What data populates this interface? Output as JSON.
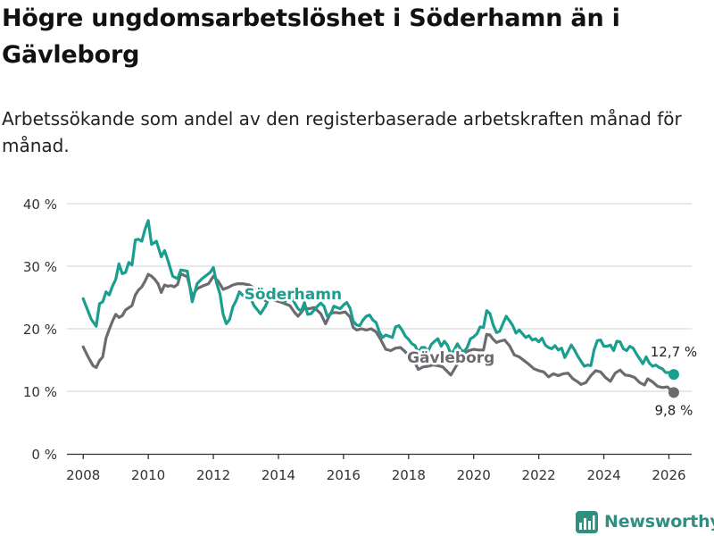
{
  "title": "Högre ungdomsarbetslöshet i Söderhamn än i Gävleborg",
  "subtitle": "Arbetssökande som andel av den registerbaserade arbetskraften månad för månad.",
  "brand": {
    "name": "Newsworthy"
  },
  "colors": {
    "soderhamn": "#1a9e8f",
    "gavleborg": "#6d6b70",
    "grid": "#d9d9d9",
    "axis": "#333333"
  },
  "chart_data": {
    "type": "line",
    "title": "Högre ungdomsarbetslöshet i Söderhamn än i Gävleborg",
    "xlabel": "",
    "ylabel": "",
    "xlim": [
      2007.5,
      2026.7
    ],
    "ylim": [
      0,
      40
    ],
    "xticks": [
      2008,
      2010,
      2012,
      2014,
      2016,
      2018,
      2020,
      2022,
      2024,
      2026
    ],
    "yticks": [
      0,
      10,
      20,
      30,
      40
    ],
    "ytick_labels": [
      "0 %",
      "10 %",
      "20 %",
      "30 %",
      "40 %"
    ],
    "grid": true,
    "series": [
      {
        "name": "Söderhamn",
        "label": "Söderhamn",
        "end_label": "12,7 %",
        "points": [
          [
            2008.0,
            24.8
          ],
          [
            2008.25,
            21.5
          ],
          [
            2008.4,
            20.4
          ],
          [
            2008.5,
            24.0
          ],
          [
            2008.6,
            24.3
          ],
          [
            2008.7,
            25.9
          ],
          [
            2008.8,
            25.4
          ],
          [
            2008.9,
            26.8
          ],
          [
            2009.0,
            27.9
          ],
          [
            2009.1,
            30.4
          ],
          [
            2009.2,
            28.8
          ],
          [
            2009.3,
            29.0
          ],
          [
            2009.4,
            30.6
          ],
          [
            2009.5,
            30.2
          ],
          [
            2009.6,
            34.2
          ],
          [
            2009.7,
            34.3
          ],
          [
            2009.8,
            34.0
          ],
          [
            2009.9,
            35.9
          ],
          [
            2010.0,
            37.3
          ],
          [
            2010.1,
            33.5
          ],
          [
            2010.25,
            34.0
          ],
          [
            2010.4,
            31.5
          ],
          [
            2010.5,
            32.5
          ],
          [
            2010.6,
            31.0
          ],
          [
            2010.75,
            28.4
          ],
          [
            2010.9,
            28.0
          ],
          [
            2011.0,
            29.4
          ],
          [
            2011.2,
            29.2
          ],
          [
            2011.35,
            24.3
          ],
          [
            2011.5,
            27.2
          ],
          [
            2011.65,
            28.0
          ],
          [
            2011.8,
            28.6
          ],
          [
            2011.9,
            29.0
          ],
          [
            2012.0,
            29.8
          ],
          [
            2012.1,
            27.3
          ],
          [
            2012.2,
            25.6
          ],
          [
            2012.3,
            22.3
          ],
          [
            2012.4,
            20.8
          ],
          [
            2012.5,
            21.5
          ],
          [
            2012.6,
            23.5
          ],
          [
            2012.7,
            24.5
          ],
          [
            2012.8,
            25.9
          ],
          [
            2012.95,
            25.1
          ],
          [
            2013.1,
            25.3
          ],
          [
            2013.25,
            23.7
          ],
          [
            2013.45,
            22.4
          ],
          [
            2013.6,
            23.6
          ],
          [
            2013.75,
            25.4
          ],
          [
            2013.9,
            25.0
          ],
          [
            2014.0,
            24.7
          ],
          [
            2014.2,
            24.3
          ],
          [
            2014.35,
            25.6
          ],
          [
            2014.5,
            24.1
          ],
          [
            2014.6,
            23.2
          ],
          [
            2014.7,
            22.8
          ],
          [
            2014.8,
            24.2
          ],
          [
            2014.9,
            22.3
          ],
          [
            2015.0,
            22.4
          ],
          [
            2015.2,
            23.6
          ],
          [
            2015.3,
            24.1
          ],
          [
            2015.4,
            23.6
          ],
          [
            2015.5,
            22.0
          ],
          [
            2015.6,
            22.3
          ],
          [
            2015.7,
            23.6
          ],
          [
            2015.8,
            23.4
          ],
          [
            2015.9,
            23.2
          ],
          [
            2016.0,
            23.8
          ],
          [
            2016.1,
            24.2
          ],
          [
            2016.2,
            23.3
          ],
          [
            2016.3,
            21.2
          ],
          [
            2016.4,
            20.6
          ],
          [
            2016.5,
            20.5
          ],
          [
            2016.6,
            21.4
          ],
          [
            2016.7,
            22.0
          ],
          [
            2016.8,
            22.2
          ],
          [
            2016.9,
            21.4
          ],
          [
            2017.0,
            21.0
          ],
          [
            2017.1,
            19.5
          ],
          [
            2017.2,
            18.6
          ],
          [
            2017.3,
            19.0
          ],
          [
            2017.4,
            18.8
          ],
          [
            2017.5,
            18.6
          ],
          [
            2017.6,
            20.3
          ],
          [
            2017.7,
            20.5
          ],
          [
            2017.8,
            19.8
          ],
          [
            2017.9,
            18.8
          ],
          [
            2018.0,
            18.3
          ],
          [
            2018.1,
            17.6
          ],
          [
            2018.2,
            17.3
          ],
          [
            2018.3,
            16.2
          ],
          [
            2018.4,
            17.0
          ],
          [
            2018.5,
            17.0
          ],
          [
            2018.6,
            16.4
          ],
          [
            2018.7,
            17.5
          ],
          [
            2018.8,
            18.0
          ],
          [
            2018.9,
            18.4
          ],
          [
            2019.0,
            17.2
          ],
          [
            2019.1,
            18.0
          ],
          [
            2019.2,
            17.3
          ],
          [
            2019.3,
            15.9
          ],
          [
            2019.4,
            16.6
          ],
          [
            2019.5,
            17.6
          ],
          [
            2019.6,
            16.7
          ],
          [
            2019.7,
            16.3
          ],
          [
            2019.8,
            17.0
          ],
          [
            2019.9,
            18.4
          ],
          [
            2020.0,
            18.7
          ],
          [
            2020.1,
            19.2
          ],
          [
            2020.2,
            20.3
          ],
          [
            2020.3,
            20.2
          ],
          [
            2020.4,
            22.9
          ],
          [
            2020.5,
            22.4
          ],
          [
            2020.6,
            20.6
          ],
          [
            2020.7,
            19.4
          ],
          [
            2020.8,
            19.6
          ],
          [
            2020.9,
            20.8
          ],
          [
            2021.0,
            22.0
          ],
          [
            2021.1,
            21.3
          ],
          [
            2021.2,
            20.5
          ],
          [
            2021.3,
            19.3
          ],
          [
            2021.4,
            19.8
          ],
          [
            2021.5,
            19.2
          ],
          [
            2021.6,
            18.6
          ],
          [
            2021.7,
            18.9
          ],
          [
            2021.8,
            18.2
          ],
          [
            2021.9,
            18.4
          ],
          [
            2022.0,
            17.9
          ],
          [
            2022.1,
            18.5
          ],
          [
            2022.2,
            17.4
          ],
          [
            2022.3,
            17.0
          ],
          [
            2022.4,
            16.8
          ],
          [
            2022.5,
            17.3
          ],
          [
            2022.6,
            16.6
          ],
          [
            2022.7,
            16.9
          ],
          [
            2022.8,
            15.4
          ],
          [
            2022.9,
            16.4
          ],
          [
            2023.0,
            17.4
          ],
          [
            2023.1,
            16.6
          ],
          [
            2023.2,
            15.6
          ],
          [
            2023.3,
            14.8
          ],
          [
            2023.4,
            14.0
          ],
          [
            2023.5,
            14.2
          ],
          [
            2023.6,
            14.1
          ],
          [
            2023.7,
            16.6
          ],
          [
            2023.8,
            18.1
          ],
          [
            2023.9,
            18.2
          ],
          [
            2024.0,
            17.2
          ],
          [
            2024.1,
            17.2
          ],
          [
            2024.2,
            17.4
          ],
          [
            2024.3,
            16.5
          ],
          [
            2024.4,
            18.0
          ],
          [
            2024.5,
            17.9
          ],
          [
            2024.6,
            16.8
          ],
          [
            2024.7,
            16.5
          ],
          [
            2024.8,
            17.2
          ],
          [
            2024.9,
            16.9
          ],
          [
            2025.0,
            16.0
          ],
          [
            2025.1,
            15.2
          ],
          [
            2025.2,
            14.4
          ],
          [
            2025.3,
            15.5
          ],
          [
            2025.4,
            14.5
          ],
          [
            2025.5,
            14.0
          ],
          [
            2025.6,
            14.2
          ],
          [
            2025.7,
            13.8
          ],
          [
            2025.8,
            13.6
          ],
          [
            2025.9,
            13.0
          ],
          [
            2026.0,
            13.0
          ],
          [
            2026.15,
            12.7
          ]
        ]
      },
      {
        "name": "Gävleborg",
        "label": "Gävleborg",
        "end_label": "9,8 %",
        "points": [
          [
            2008.0,
            17.1
          ],
          [
            2008.15,
            15.5
          ],
          [
            2008.3,
            14.1
          ],
          [
            2008.4,
            13.8
          ],
          [
            2008.5,
            14.9
          ],
          [
            2008.6,
            15.5
          ],
          [
            2008.7,
            18.5
          ],
          [
            2008.8,
            19.9
          ],
          [
            2008.9,
            21.2
          ],
          [
            2009.0,
            22.3
          ],
          [
            2009.1,
            21.8
          ],
          [
            2009.2,
            22.1
          ],
          [
            2009.3,
            23.0
          ],
          [
            2009.5,
            23.7
          ],
          [
            2009.6,
            25.4
          ],
          [
            2009.7,
            26.2
          ],
          [
            2009.8,
            26.7
          ],
          [
            2009.9,
            27.6
          ],
          [
            2010.0,
            28.7
          ],
          [
            2010.1,
            28.4
          ],
          [
            2010.2,
            27.9
          ],
          [
            2010.3,
            27.2
          ],
          [
            2010.4,
            25.8
          ],
          [
            2010.5,
            27.0
          ],
          [
            2010.6,
            26.8
          ],
          [
            2010.7,
            26.9
          ],
          [
            2010.8,
            26.7
          ],
          [
            2010.9,
            27.1
          ],
          [
            2011.0,
            28.8
          ],
          [
            2011.2,
            28.3
          ],
          [
            2011.35,
            25.2
          ],
          [
            2011.5,
            26.4
          ],
          [
            2011.7,
            26.9
          ],
          [
            2011.85,
            27.2
          ],
          [
            2012.0,
            28.4
          ],
          [
            2012.15,
            27.6
          ],
          [
            2012.3,
            26.3
          ],
          [
            2012.45,
            26.6
          ],
          [
            2012.6,
            27.0
          ],
          [
            2012.75,
            27.2
          ],
          [
            2012.9,
            27.2
          ],
          [
            2013.1,
            27.0
          ],
          [
            2013.25,
            26.5
          ],
          [
            2013.45,
            25.0
          ],
          [
            2013.6,
            24.5
          ],
          [
            2013.75,
            24.8
          ],
          [
            2013.9,
            24.5
          ],
          [
            2014.05,
            24.3
          ],
          [
            2014.2,
            24.0
          ],
          [
            2014.35,
            23.7
          ],
          [
            2014.5,
            22.6
          ],
          [
            2014.6,
            22.0
          ],
          [
            2014.7,
            22.6
          ],
          [
            2014.8,
            23.3
          ],
          [
            2014.95,
            23.2
          ],
          [
            2015.1,
            23.4
          ],
          [
            2015.3,
            22.4
          ],
          [
            2015.45,
            20.8
          ],
          [
            2015.6,
            22.5
          ],
          [
            2015.75,
            22.6
          ],
          [
            2015.9,
            22.5
          ],
          [
            2016.05,
            22.7
          ],
          [
            2016.2,
            21.9
          ],
          [
            2016.3,
            20.2
          ],
          [
            2016.4,
            19.8
          ],
          [
            2016.55,
            20.0
          ],
          [
            2016.7,
            19.8
          ],
          [
            2016.85,
            20.0
          ],
          [
            2017.0,
            19.5
          ],
          [
            2017.15,
            18.2
          ],
          [
            2017.3,
            16.7
          ],
          [
            2017.45,
            16.5
          ],
          [
            2017.6,
            16.9
          ],
          [
            2017.75,
            17.0
          ],
          [
            2017.9,
            16.3
          ],
          [
            2018.05,
            15.5
          ],
          [
            2018.2,
            14.5
          ],
          [
            2018.3,
            13.5
          ],
          [
            2018.45,
            13.9
          ],
          [
            2018.6,
            14.0
          ],
          [
            2018.75,
            14.2
          ],
          [
            2018.9,
            14.1
          ],
          [
            2019.05,
            13.9
          ],
          [
            2019.2,
            13.1
          ],
          [
            2019.3,
            12.6
          ],
          [
            2019.4,
            13.5
          ],
          [
            2019.55,
            14.8
          ],
          [
            2019.7,
            15.8
          ],
          [
            2019.85,
            16.5
          ],
          [
            2020.0,
            16.7
          ],
          [
            2020.15,
            16.6
          ],
          [
            2020.3,
            16.6
          ],
          [
            2020.4,
            19.1
          ],
          [
            2020.5,
            19.0
          ],
          [
            2020.6,
            18.3
          ],
          [
            2020.7,
            17.8
          ],
          [
            2020.8,
            18.0
          ],
          [
            2020.95,
            18.2
          ],
          [
            2021.1,
            17.3
          ],
          [
            2021.25,
            15.8
          ],
          [
            2021.4,
            15.5
          ],
          [
            2021.55,
            14.9
          ],
          [
            2021.7,
            14.3
          ],
          [
            2021.85,
            13.6
          ],
          [
            2022.0,
            13.3
          ],
          [
            2022.15,
            13.1
          ],
          [
            2022.3,
            12.3
          ],
          [
            2022.45,
            12.8
          ],
          [
            2022.6,
            12.5
          ],
          [
            2022.75,
            12.8
          ],
          [
            2022.9,
            12.9
          ],
          [
            2023.05,
            12.0
          ],
          [
            2023.2,
            11.5
          ],
          [
            2023.3,
            11.1
          ],
          [
            2023.45,
            11.4
          ],
          [
            2023.6,
            12.5
          ],
          [
            2023.75,
            13.3
          ],
          [
            2023.9,
            13.1
          ],
          [
            2024.05,
            12.2
          ],
          [
            2024.2,
            11.6
          ],
          [
            2024.35,
            12.9
          ],
          [
            2024.5,
            13.4
          ],
          [
            2024.65,
            12.6
          ],
          [
            2024.8,
            12.5
          ],
          [
            2024.95,
            12.2
          ],
          [
            2025.1,
            11.4
          ],
          [
            2025.25,
            11.0
          ],
          [
            2025.35,
            12.0
          ],
          [
            2025.5,
            11.5
          ],
          [
            2025.65,
            10.8
          ],
          [
            2025.8,
            10.6
          ],
          [
            2025.95,
            10.7
          ],
          [
            2026.15,
            9.8
          ]
        ]
      }
    ]
  }
}
